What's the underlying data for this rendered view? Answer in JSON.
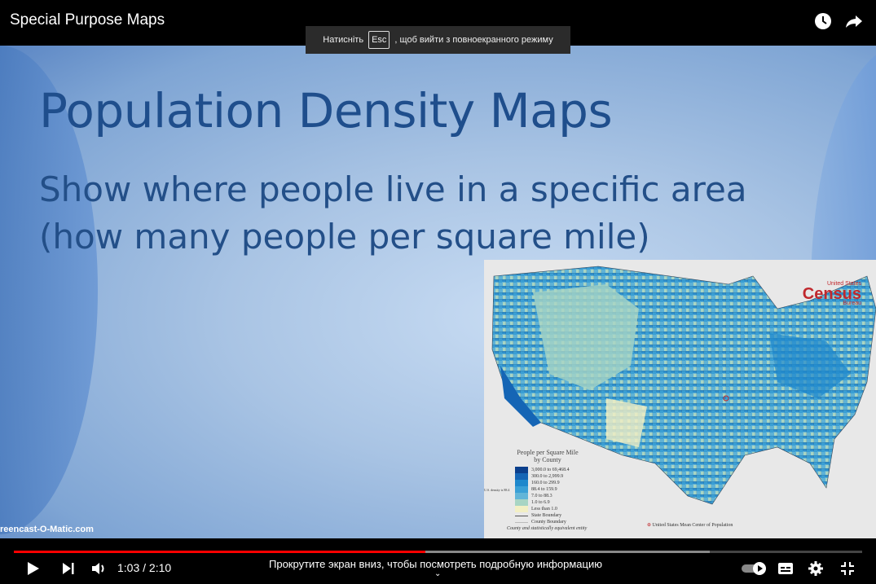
{
  "header": {
    "title": "Special Purpose Maps",
    "icons": [
      "watch-later-icon",
      "share-icon"
    ]
  },
  "fullscreen_notice": {
    "before": "Натисніть",
    "key": "Esc",
    "after": ", щоб вийти з повноекранного режиму"
  },
  "slide": {
    "title": "Population Density Maps",
    "line1": "Show where people live in a specific area",
    "line2": "(how many people per square mile)",
    "watermark": "reencast-O-Matic.com",
    "map": {
      "logo_top": "United States",
      "logo_main": "Census",
      "logo_bottom": "Bureau",
      "legend_title": "People per Square Mile",
      "legend_subtitle": "by County",
      "legend": [
        {
          "label": "3,000.0 to 69,468.4",
          "color": "#0b3f8c"
        },
        {
          "label": "300.0 to 2,999.9",
          "color": "#1565b5"
        },
        {
          "label": "160.0 to 299.9",
          "color": "#1e88cc"
        },
        {
          "label": "88.4 to 159.9",
          "color": "#3aa0d6"
        },
        {
          "label": "7.0 to 88.3",
          "color": "#62b5d8"
        },
        {
          "label": "1.0 to 6.9",
          "color": "#a8d5c4"
        },
        {
          "label": "Less than 1.0",
          "color": "#f2efc4"
        }
      ],
      "us_density": "U.S. density is 88.4",
      "state_boundary": "State Boundary",
      "county_boundary": "County Boundary",
      "footnote": "County and statistically equivalent entity",
      "mean_center": "United States Mean Center of Population"
    }
  },
  "player": {
    "current_time": "1:03",
    "duration": "2:10",
    "time_display": "1:03 / 2:10",
    "played_percent": 48.5,
    "buffered_percent": 82,
    "scroll_hint": "Прокрутите экран вниз, чтобы посмотреть подробную информацию",
    "autoplay_on": true
  }
}
